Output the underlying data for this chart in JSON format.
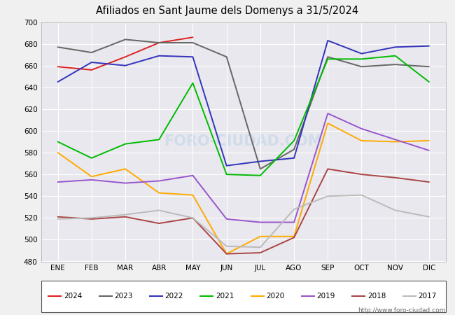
{
  "title": "Afiliados en Sant Jaume dels Domenys a 31/5/2024",
  "title_bg": "#6aa0c8",
  "months": [
    "ENE",
    "FEB",
    "MAR",
    "ABR",
    "MAY",
    "JUN",
    "JUL",
    "AGO",
    "SEP",
    "OCT",
    "NOV",
    "DIC"
  ],
  "series": {
    "2024": {
      "color": "#dd2222",
      "data": [
        659,
        656,
        668,
        681,
        686,
        null,
        null,
        null,
        null,
        null,
        null,
        null
      ]
    },
    "2023": {
      "color": "#666666",
      "data": [
        677,
        672,
        684,
        681,
        681,
        668,
        565,
        583,
        668,
        659,
        661,
        659
      ]
    },
    "2022": {
      "color": "#3333bb",
      "data": [
        645,
        663,
        660,
        669,
        668,
        568,
        572,
        575,
        683,
        671,
        677,
        678
      ]
    },
    "2021": {
      "color": "#00bb00",
      "data": [
        590,
        575,
        588,
        592,
        644,
        560,
        559,
        591,
        666,
        666,
        669,
        645
      ]
    },
    "2020": {
      "color": "#ffaa00",
      "data": [
        580,
        558,
        565,
        543,
        541,
        487,
        503,
        503,
        607,
        591,
        590,
        591
      ]
    },
    "2019": {
      "color": "#9955cc",
      "data": [
        553,
        555,
        552,
        554,
        559,
        519,
        516,
        516,
        616,
        602,
        592,
        582
      ]
    },
    "2018": {
      "color": "#aa4444",
      "data": [
        521,
        519,
        521,
        515,
        520,
        487,
        488,
        502,
        565,
        560,
        557,
        553
      ]
    },
    "2017": {
      "color": "#bbbbbb",
      "data": [
        519,
        520,
        523,
        527,
        520,
        494,
        493,
        528,
        540,
        541,
        527,
        521
      ]
    }
  },
  "ylim": [
    480,
    700
  ],
  "yticks": [
    480,
    500,
    520,
    540,
    560,
    580,
    600,
    620,
    640,
    660,
    680,
    700
  ],
  "fig_bg": "#f0f0f0",
  "plot_bg": "#e8e8ee",
  "grid_color": "#ffffff",
  "watermark": "FORO-CIUDAD.COM",
  "url": "http://www.foro-ciudad.com",
  "legend_years": [
    "2024",
    "2023",
    "2022",
    "2021",
    "2020",
    "2019",
    "2018",
    "2017"
  ]
}
